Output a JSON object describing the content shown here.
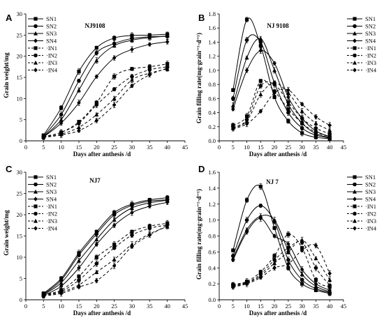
{
  "chart_data": [
    {
      "type": "line",
      "panel_label": "A",
      "title": "NJ9108",
      "xlabel": "Days after anthesis /d",
      "ylabel": "Grain weight/mg",
      "xlim": [
        0,
        45
      ],
      "ylim": [
        0,
        30
      ],
      "xticks": [
        0,
        5,
        10,
        15,
        20,
        25,
        30,
        35,
        40,
        45
      ],
      "yticks": [
        0,
        5,
        10,
        15,
        20,
        25,
        30
      ],
      "legend_position": "top-left",
      "x": [
        5,
        10,
        15,
        20,
        25,
        30,
        35,
        40
      ],
      "series": [
        {
          "name": "SN1",
          "values": [
            1.3,
            7.8,
            16.4,
            22.0,
            24.3,
            24.9,
            25.0,
            25.2
          ]
        },
        {
          "name": "SN2",
          "values": [
            1.1,
            6.2,
            14.2,
            20.8,
            23.0,
            24.2,
            24.6,
            24.7
          ]
        },
        {
          "name": "SN3",
          "values": [
            1.0,
            5.0,
            12.0,
            19.0,
            22.5,
            23.8,
            24.4,
            24.8
          ]
        },
        {
          "name": "SN4",
          "values": [
            0.9,
            4.2,
            9.0,
            15.2,
            19.6,
            21.6,
            22.8,
            23.4
          ]
        },
        {
          "name": "IN1",
          "values": [
            1.0,
            2.0,
            4.5,
            9.0,
            15.2,
            17.0,
            17.5,
            18.2
          ]
        },
        {
          "name": "IN2",
          "values": [
            1.0,
            2.0,
            4.2,
            8.5,
            12.2,
            15.2,
            16.8,
            17.5
          ]
        },
        {
          "name": "IN3",
          "values": [
            0.9,
            1.6,
            3.2,
            6.2,
            10.0,
            14.4,
            16.0,
            17.0
          ]
        },
        {
          "name": "IN4",
          "values": [
            0.8,
            1.4,
            2.4,
            4.8,
            8.5,
            13.0,
            15.6,
            17.2
          ]
        }
      ]
    },
    {
      "type": "line",
      "panel_label": "B",
      "title": "NJ 9108",
      "xlabel": "Days after anthesis /d",
      "ylabel": "Grain filling rate(mg·grain⁻¹·d⁻¹)",
      "xlim": [
        0,
        45
      ],
      "ylim": [
        0,
        1.8
      ],
      "xticks": [
        0,
        5,
        10,
        15,
        20,
        25,
        30,
        35,
        40,
        45
      ],
      "yticks": [
        0,
        0.2,
        0.4,
        0.6,
        0.8,
        1.0,
        1.2,
        1.4,
        1.6,
        1.8
      ],
      "legend_position": "right",
      "x": [
        5,
        10,
        15,
        20,
        25,
        30,
        35,
        40
      ],
      "series": [
        {
          "name": "SN1",
          "values": [
            0.72,
            1.72,
            1.35,
            0.62,
            0.28,
            0.11,
            0.05,
            0.03
          ]
        },
        {
          "name": "SN2",
          "values": [
            0.6,
            1.43,
            1.4,
            0.82,
            0.4,
            0.18,
            0.08,
            0.04
          ]
        },
        {
          "name": "SN3",
          "values": [
            0.5,
            1.18,
            1.45,
            1.0,
            0.52,
            0.25,
            0.1,
            0.05
          ]
        },
        {
          "name": "SN4",
          "values": [
            0.45,
            1.0,
            1.28,
            1.1,
            0.62,
            0.32,
            0.14,
            0.06
          ]
        },
        {
          "name": "IN1",
          "values": [
            0.22,
            0.35,
            0.85,
            0.7,
            0.45,
            0.25,
            0.12,
            0.06
          ]
        },
        {
          "name": "IN2",
          "values": [
            0.2,
            0.3,
            0.78,
            0.8,
            0.55,
            0.32,
            0.18,
            0.1
          ]
        },
        {
          "name": "IN3",
          "values": [
            0.18,
            0.28,
            0.66,
            0.82,
            0.68,
            0.42,
            0.25,
            0.15
          ]
        },
        {
          "name": "IN4",
          "values": [
            0.17,
            0.24,
            0.42,
            0.68,
            0.72,
            0.52,
            0.34,
            0.22
          ]
        }
      ]
    },
    {
      "type": "line",
      "panel_label": "C",
      "title": "NJ7",
      "xlabel": "Days after anthesis /d",
      "ylabel": "Grain weight/mg",
      "xlim": [
        0,
        45
      ],
      "ylim": [
        0,
        30
      ],
      "xticks": [
        0,
        5,
        10,
        15,
        20,
        25,
        30,
        35,
        40,
        45
      ],
      "yticks": [
        0,
        5,
        10,
        15,
        20,
        25,
        30
      ],
      "legend_position": "top-left",
      "x": [
        5,
        10,
        15,
        20,
        25,
        30,
        35,
        40
      ],
      "series": [
        {
          "name": "SN1",
          "values": [
            1.5,
            5.0,
            11.0,
            16.0,
            20.5,
            22.5,
            23.5,
            24.0
          ]
        },
        {
          "name": "SN2",
          "values": [
            1.3,
            4.6,
            10.5,
            15.5,
            20.0,
            22.2,
            23.2,
            23.5
          ]
        },
        {
          "name": "SN3",
          "values": [
            1.2,
            4.0,
            9.2,
            14.2,
            18.8,
            21.6,
            22.8,
            23.4
          ]
        },
        {
          "name": "SN4",
          "values": [
            1.0,
            3.2,
            7.5,
            13.0,
            17.5,
            20.5,
            22.0,
            22.9
          ]
        },
        {
          "name": "IN1",
          "values": [
            1.2,
            2.3,
            5.5,
            10.0,
            13.0,
            16.0,
            17.3,
            18.0
          ]
        },
        {
          "name": "IN2",
          "values": [
            1.1,
            2.0,
            4.6,
            8.5,
            12.2,
            15.2,
            16.8,
            17.6
          ]
        },
        {
          "name": "IN3",
          "values": [
            1.0,
            1.8,
            3.5,
            6.5,
            9.5,
            13.0,
            15.5,
            17.2
          ]
        },
        {
          "name": "IN4",
          "values": [
            0.9,
            1.5,
            3.0,
            4.5,
            8.0,
            12.5,
            15.2,
            17.5
          ]
        }
      ]
    },
    {
      "type": "line",
      "panel_label": "D",
      "title": "NJ 7",
      "xlabel": "Days after anthesis /d",
      "ylabel": "Grain filling rate(mg·grain⁻¹·d⁻¹)",
      "xlim": [
        0,
        45
      ],
      "ylim": [
        0,
        1.6
      ],
      "xticks": [
        0,
        5,
        10,
        15,
        20,
        25,
        30,
        35,
        40,
        45
      ],
      "yticks": [
        0,
        0.2,
        0.4,
        0.6,
        0.8,
        1.0,
        1.2,
        1.4,
        1.6
      ],
      "legend_position": "right",
      "x": [
        5,
        10,
        15,
        20,
        25,
        30,
        35,
        40
      ],
      "series": [
        {
          "name": "SN1",
          "values": [
            0.62,
            1.25,
            1.42,
            0.9,
            0.4,
            0.2,
            0.12,
            0.08
          ]
        },
        {
          "name": "SN2",
          "values": [
            0.55,
            1.0,
            1.18,
            0.98,
            0.5,
            0.25,
            0.14,
            0.09
          ]
        },
        {
          "name": "SN3",
          "values": [
            0.52,
            0.88,
            1.05,
            1.0,
            0.62,
            0.32,
            0.17,
            0.1
          ]
        },
        {
          "name": "SN4",
          "values": [
            0.5,
            0.85,
            1.02,
            0.8,
            0.7,
            0.38,
            0.2,
            0.12
          ]
        },
        {
          "name": "IN1",
          "values": [
            0.19,
            0.23,
            0.35,
            0.55,
            0.82,
            0.65,
            0.25,
            0.16
          ]
        },
        {
          "name": "IN2",
          "values": [
            0.18,
            0.22,
            0.32,
            0.5,
            0.65,
            0.72,
            0.4,
            0.18
          ]
        },
        {
          "name": "IN3",
          "values": [
            0.17,
            0.21,
            0.3,
            0.46,
            0.6,
            0.75,
            0.52,
            0.25
          ]
        },
        {
          "name": "IN4",
          "values": [
            0.16,
            0.2,
            0.28,
            0.4,
            0.45,
            0.62,
            0.68,
            0.33
          ]
        }
      ]
    }
  ],
  "markers": [
    "square",
    "circle",
    "triangle",
    "diamond",
    "square",
    "circle",
    "triangle",
    "diamond"
  ],
  "dashed_series": [
    "IN1",
    "IN2",
    "IN3",
    "IN4"
  ],
  "line_color": "#000000"
}
